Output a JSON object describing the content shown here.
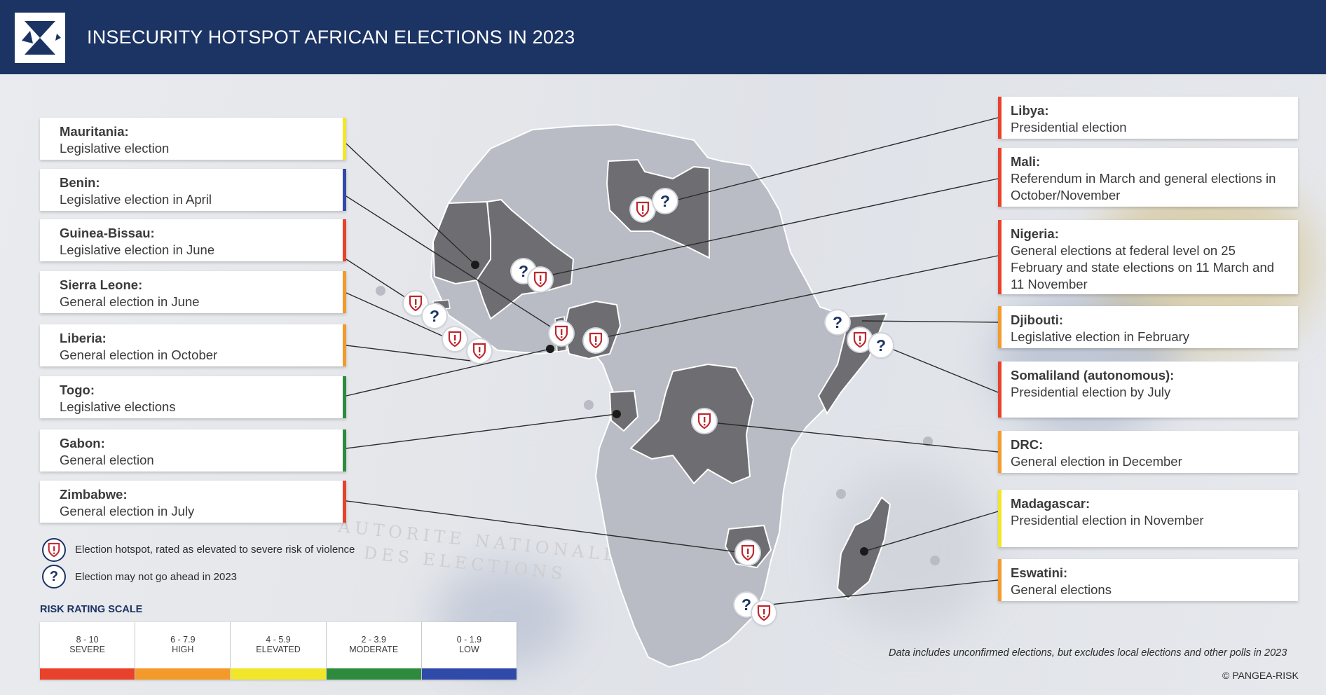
{
  "header": {
    "title": "INSECURITY HOTSPOT AFRICAN ELECTIONS IN 2023"
  },
  "colors": {
    "severe": "#e8412c",
    "high": "#f39a2a",
    "elevated": "#f2e62a",
    "moderate": "#2e8b3e",
    "low": "#2f4aa8",
    "header": "#1c3464",
    "hotspot_country": "#6e6e72",
    "other_country": "#b9bcc4"
  },
  "left_cards": [
    {
      "name": "Mauritania:",
      "detail": "Legislative election",
      "rating": "elevated"
    },
    {
      "name": "Benin:",
      "detail": "Legislative election in April",
      "rating": "low"
    },
    {
      "name": "Guinea-Bissau:",
      "detail": "Legislative election in June",
      "rating": "severe"
    },
    {
      "name": "Sierra Leone:",
      "detail": "General election in June",
      "rating": "high"
    },
    {
      "name": "Liberia:",
      "detail": "General election in October",
      "rating": "high"
    },
    {
      "name": "Togo:",
      "detail": "Legislative elections",
      "rating": "moderate"
    },
    {
      "name": "Gabon:",
      "detail": "General election",
      "rating": "moderate"
    },
    {
      "name": "Zimbabwe:",
      "detail": "General election in July",
      "rating": "severe"
    }
  ],
  "right_cards": [
    {
      "name": "Libya:",
      "detail": "Presidential election",
      "rating": "severe"
    },
    {
      "name": "Mali:",
      "detail": "Referendum in March and general elections in October/November",
      "rating": "severe"
    },
    {
      "name": "Nigeria:",
      "detail": "General elections at federal level on 25 February and state elections on 11 March and 11 November",
      "rating": "severe"
    },
    {
      "name": "Djibouti:",
      "detail": "Legislative election in February",
      "rating": "high"
    },
    {
      "name": "Somaliland (autonomous):",
      "detail": "Presidential election by July",
      "rating": "severe"
    },
    {
      "name": "DRC:",
      "detail": "General election in December",
      "rating": "high"
    },
    {
      "name": "Madagascar:",
      "detail": "Presidential election in November",
      "rating": "elevated"
    },
    {
      "name": "Eswatini:",
      "detail": "General elections",
      "rating": "high"
    }
  ],
  "legend": {
    "hotspot": "Election hotspot, rated as elevated to severe risk of violence",
    "question": "Election may not go ahead in 2023",
    "question_symbol": "?"
  },
  "risk_scale": {
    "title": "RISK RATING SCALE",
    "levels": [
      {
        "range": "8 - 10",
        "label": "SEVERE",
        "key": "severe"
      },
      {
        "range": "6 - 7.9",
        "label": "HIGH",
        "key": "high"
      },
      {
        "range": "4 - 5.9",
        "label": "ELEVATED",
        "key": "elevated"
      },
      {
        "range": "2 - 3.9",
        "label": "MODERATE",
        "key": "moderate"
      },
      {
        "range": "0 - 1.9",
        "label": "LOW",
        "key": "low"
      }
    ]
  },
  "footer": {
    "note": "Data includes unconfirmed elections, but excludes local elections and other polls in 2023",
    "copyright": "© PANGEA-RISK"
  },
  "background_stamp": {
    "line1": "AUTORITE NATIONALE",
    "line2": "DES ELECTIONS"
  }
}
